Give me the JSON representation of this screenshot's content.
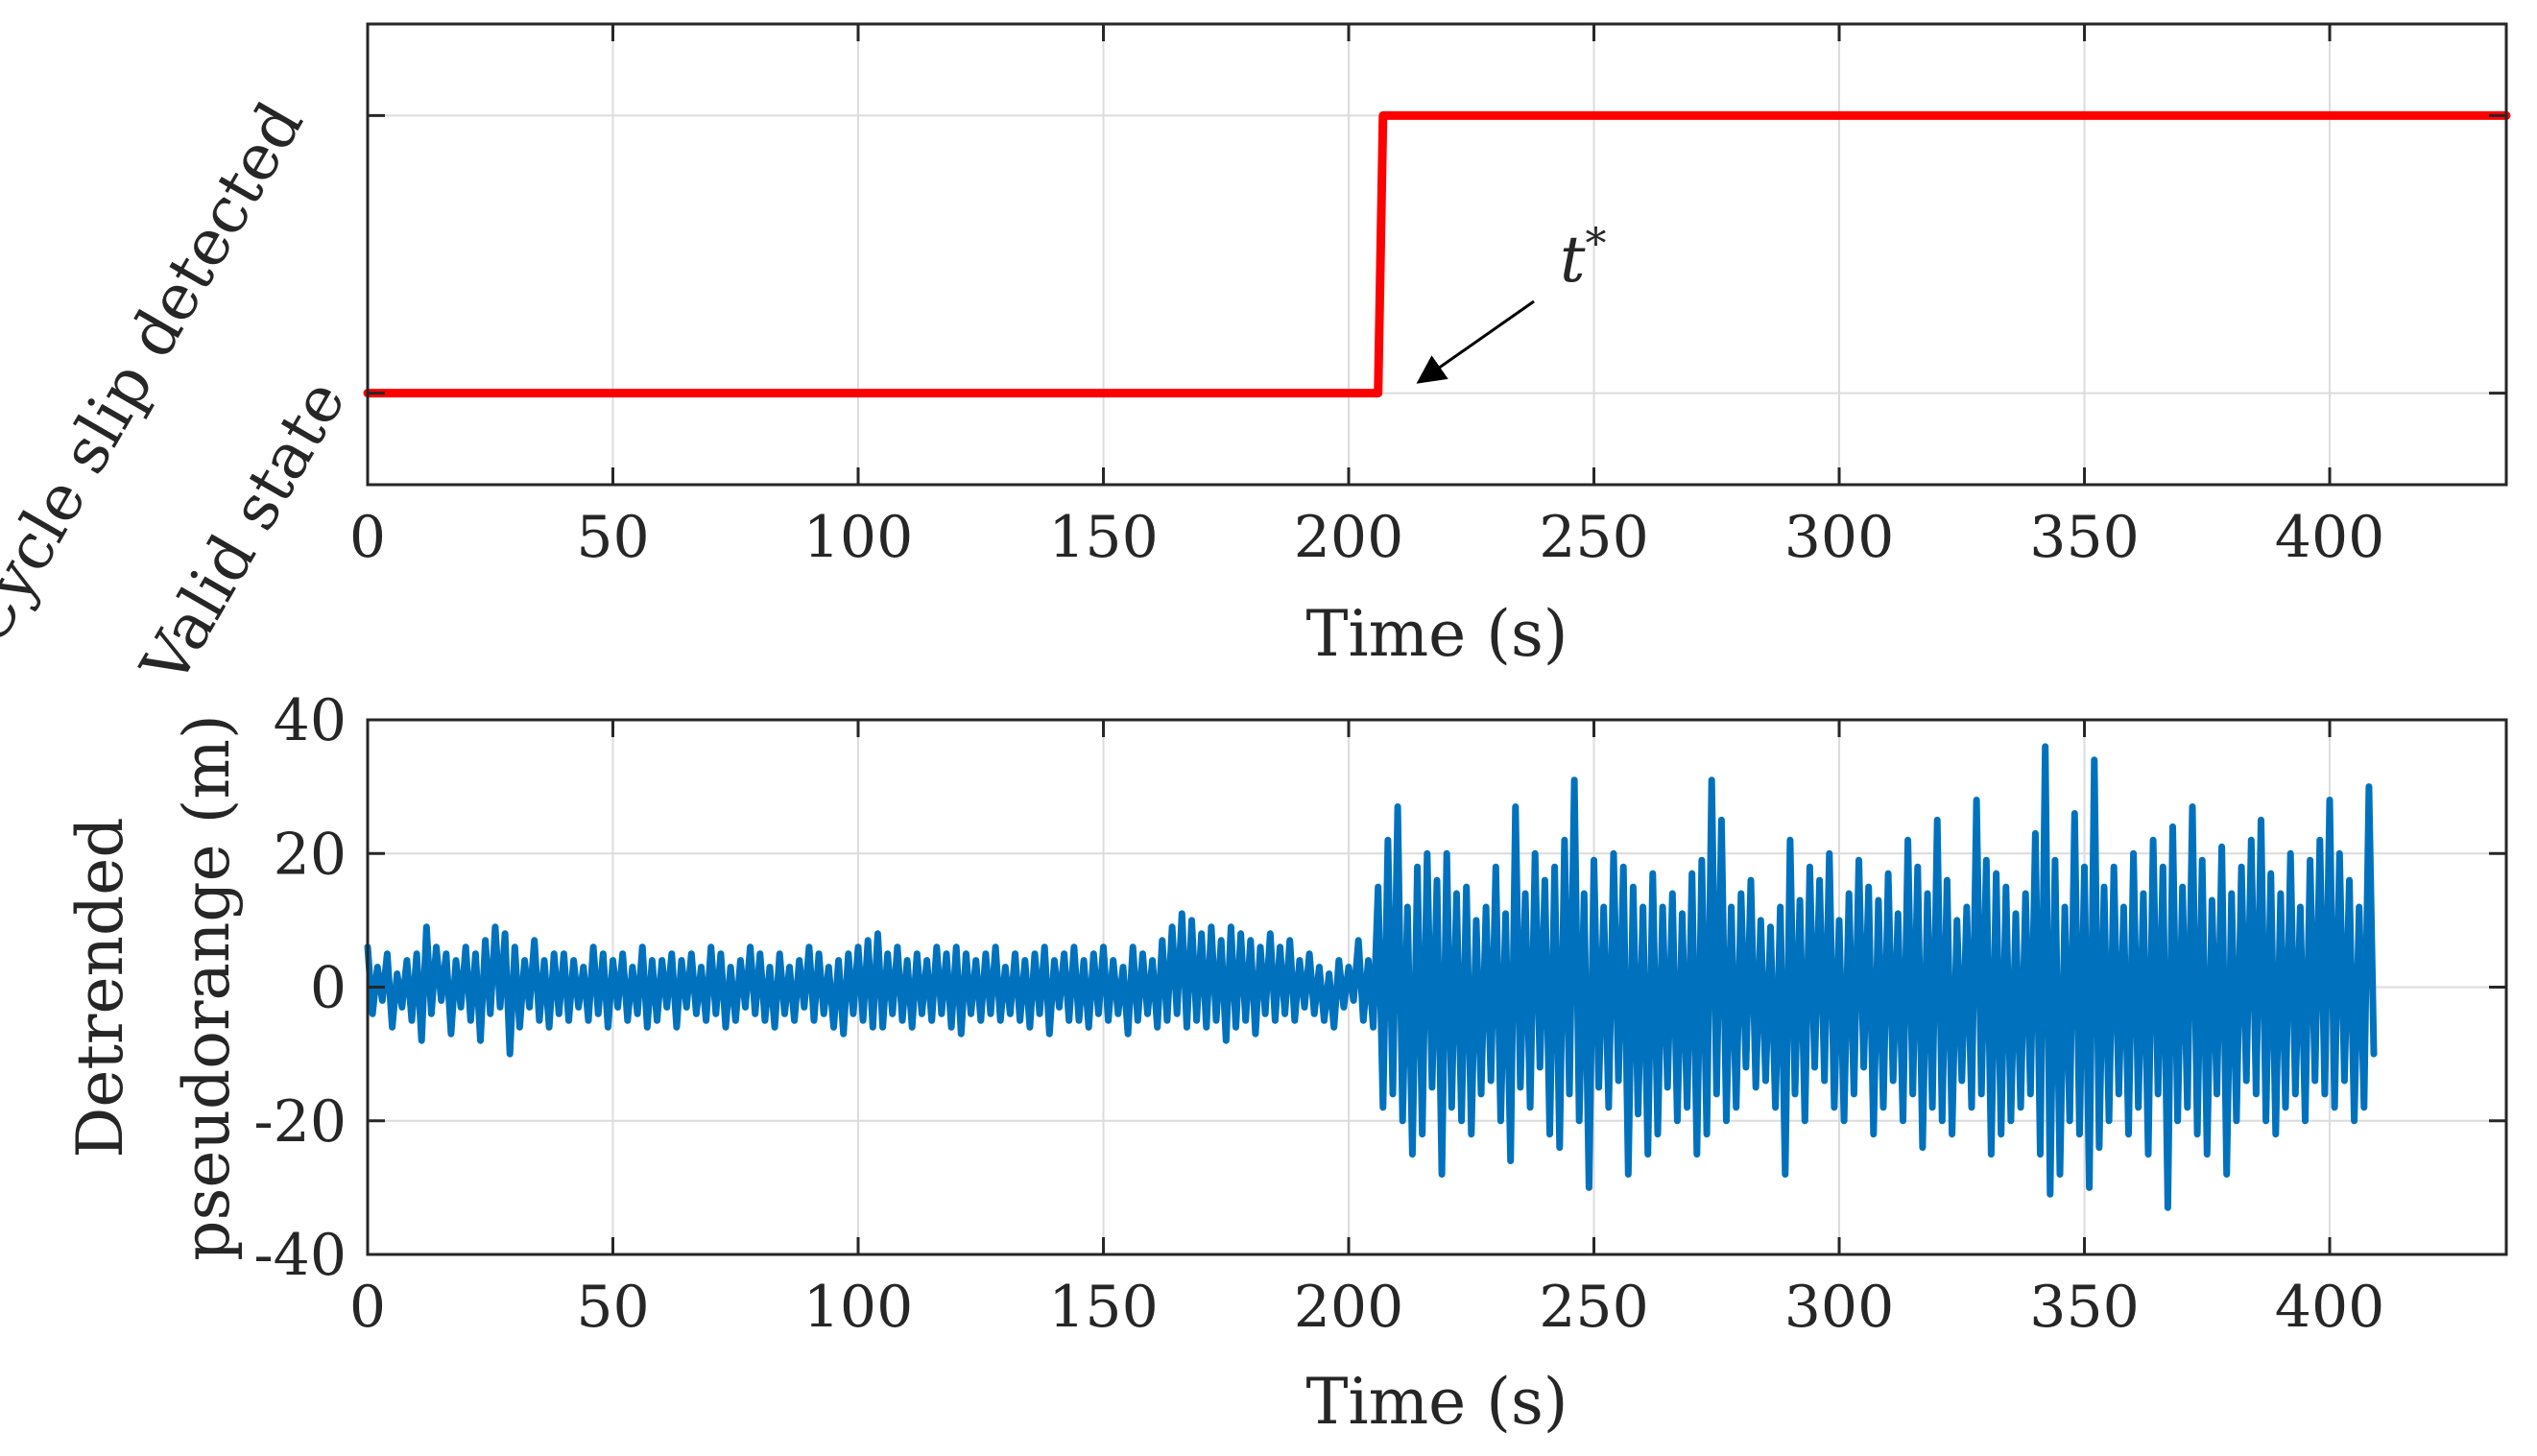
{
  "chart_data": [
    {
      "type": "line",
      "panel": "top",
      "xlabel": "Time (s)",
      "ylabel": "",
      "xlim": [
        0,
        436
      ],
      "ylim": [
        -0.33,
        1.33
      ],
      "xticks": [
        0,
        50,
        100,
        150,
        200,
        250,
        300,
        350,
        400
      ],
      "xtick_labels": [
        "0",
        "50",
        "100",
        "150",
        "200",
        "250",
        "300",
        "350",
        "400"
      ],
      "yticks": [
        0,
        1
      ],
      "ytick_labels": [
        "Valid state",
        "Cycle slip detected"
      ],
      "grid": true,
      "series": [
        {
          "name": "state",
          "color": "#ff0000",
          "x": [
            0,
            206,
            207,
            436
          ],
          "values": [
            0,
            0,
            1,
            1
          ]
        }
      ],
      "annotations": [
        {
          "text": "t*",
          "base": "t",
          "superscript": "*",
          "points_to": [
            208,
            0
          ],
          "text_at": [
            240,
            0.45
          ]
        }
      ]
    },
    {
      "type": "line",
      "panel": "bottom",
      "xlabel": "Time (s)",
      "ylabel": [
        "Detrended",
        "pseudorange (m)"
      ],
      "xlim": [
        0,
        436
      ],
      "ylim": [
        -40,
        40
      ],
      "xticks": [
        0,
        50,
        100,
        150,
        200,
        250,
        300,
        350,
        400
      ],
      "xtick_labels": [
        "0",
        "50",
        "100",
        "150",
        "200",
        "250",
        "300",
        "350",
        "400"
      ],
      "yticks": [
        -40,
        -20,
        0,
        20,
        40
      ],
      "ytick_labels": [
        "-40",
        "-20",
        "0",
        "20",
        "40"
      ],
      "grid": true,
      "series": [
        {
          "name": "detrended pseudorange",
          "color": "#0072bd",
          "x_start": 0,
          "x_step": 1,
          "values": [
            6,
            -4,
            3,
            -2,
            5,
            -6,
            2,
            -3,
            4,
            -5,
            5,
            -8,
            9,
            -4,
            6,
            -2,
            5,
            -7,
            4,
            -3,
            6,
            -5,
            5,
            -8,
            7,
            -4,
            9,
            -3,
            8,
            -10,
            6,
            -6,
            4,
            -3,
            7,
            -5,
            4,
            -6,
            5,
            -4,
            5,
            -5,
            4,
            -3,
            3,
            -5,
            6,
            -4,
            5,
            -6,
            4,
            -3,
            5,
            -5,
            3,
            -4,
            6,
            -6,
            4,
            -5,
            4,
            -3,
            5,
            -6,
            4,
            -3,
            5,
            -4,
            3,
            -5,
            6,
            -4,
            5,
            -6,
            3,
            -5,
            4,
            -3,
            6,
            -4,
            5,
            -5,
            3,
            -6,
            5,
            -4,
            3,
            -5,
            4,
            -3,
            6,
            -5,
            5,
            -4,
            3,
            -6,
            4,
            -7,
            5,
            -4,
            6,
            -5,
            7,
            -6,
            8,
            -6,
            5,
            -4,
            6,
            -5,
            4,
            -6,
            5,
            -4,
            4,
            -5,
            6,
            -4,
            5,
            -6,
            6,
            -7,
            5,
            -4,
            4,
            -5,
            5,
            -4,
            6,
            -5,
            3,
            -4,
            5,
            -5,
            4,
            -6,
            5,
            -4,
            6,
            -7,
            4,
            -3,
            5,
            -5,
            6,
            -5,
            4,
            -6,
            5,
            -4,
            6,
            -5,
            4,
            -4,
            3,
            -7,
            6,
            -5,
            5,
            -4,
            4,
            -6,
            7,
            -5,
            9,
            -4,
            11,
            -6,
            10,
            -5,
            8,
            -6,
            9,
            -5,
            7,
            -8,
            9,
            -6,
            8,
            -5,
            7,
            -7,
            6,
            -4,
            8,
            -5,
            6,
            -4,
            7,
            -5,
            4,
            -3,
            5,
            -4,
            3,
            -5,
            2,
            -6,
            4,
            -3,
            3,
            -2,
            7,
            -5,
            4,
            -6,
            15,
            -18,
            22,
            -16,
            27,
            -20,
            12,
            -25,
            18,
            -22,
            20,
            -15,
            16,
            -28,
            20,
            -18,
            14,
            -20,
            15,
            -22,
            10,
            -16,
            12,
            -14,
            18,
            -20,
            11,
            -26,
            27,
            -15,
            14,
            -18,
            20,
            -12,
            16,
            -22,
            18,
            -24,
            22,
            -16,
            31,
            -20,
            14,
            -30,
            19,
            -15,
            12,
            -18,
            20,
            -14,
            18,
            -28,
            15,
            -19,
            12,
            -25,
            17,
            -22,
            12,
            -15,
            14,
            -20,
            11,
            -18,
            17,
            -25,
            19,
            -22,
            31,
            -16,
            25,
            -20,
            12,
            -18,
            14,
            -12,
            16,
            -15,
            10,
            -14,
            9,
            -18,
            12,
            -28,
            22,
            -16,
            13,
            -20,
            18,
            -12,
            16,
            -14,
            20,
            -18,
            10,
            -20,
            14,
            -16,
            19,
            -12,
            15,
            -22,
            13,
            -18,
            17,
            -14,
            11,
            -20,
            22,
            -16,
            18,
            -24,
            14,
            -18,
            25,
            -20,
            16,
            -22,
            10,
            -14,
            12,
            -18,
            28,
            -16,
            19,
            -25,
            17,
            -22,
            15,
            -20,
            11,
            -18,
            14,
            -16,
            23,
            -25,
            36,
            -31,
            19,
            -28,
            12,
            -20,
            26,
            -22,
            18,
            -30,
            34,
            -24,
            15,
            -20,
            18,
            -16,
            12,
            -22,
            20,
            -18,
            14,
            -25,
            22,
            -16,
            18,
            -33,
            24,
            -20,
            15,
            -18,
            27,
            -22,
            19,
            -25,
            13,
            -16,
            21,
            -28,
            14,
            -20,
            18,
            -14,
            22,
            -16,
            25,
            -20,
            17,
            -22,
            14,
            -18,
            20,
            -16,
            12,
            -20,
            19,
            -14,
            22,
            -16,
            28,
            -18,
            20,
            -14,
            16,
            -20,
            12,
            -18,
            30,
            -10
          ]
        }
      ]
    }
  ]
}
